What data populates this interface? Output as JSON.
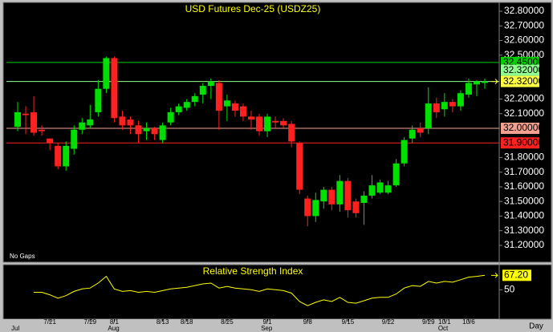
{
  "chart_data": {
    "type": "candlestick",
    "title": "USD Futures Dec-25 (USDZ25)",
    "annotation": "No Gaps",
    "period": "Day",
    "up_color": "#00e000",
    "down_color": "#ff2020",
    "categories": [
      null,
      null,
      null,
      null,
      "7/21",
      null,
      null,
      null,
      null,
      "7/29",
      null,
      null,
      "8/1",
      null,
      null,
      null,
      null,
      null,
      "8/13",
      null,
      null,
      "8/18",
      null,
      null,
      null,
      null,
      "8/25",
      null,
      null,
      null,
      null,
      "9/1",
      null,
      null,
      null,
      null,
      "9/8",
      null,
      null,
      null,
      null,
      "9/15",
      null,
      null,
      null,
      null,
      "9/22",
      null,
      null,
      null,
      null,
      "9/29",
      null,
      "10/1",
      null,
      null,
      "10/6",
      null,
      null
    ],
    "months": [
      "Jul",
      null,
      null,
      null,
      null,
      null,
      null,
      null,
      null,
      null,
      null,
      null,
      "Aug",
      null,
      null,
      null,
      null,
      null,
      null,
      null,
      null,
      null,
      null,
      null,
      null,
      null,
      null,
      null,
      null,
      null,
      null,
      "Sep",
      null,
      null,
      null,
      null,
      null,
      null,
      null,
      null,
      null,
      null,
      null,
      null,
      null,
      null,
      null,
      null,
      null,
      null,
      null,
      null,
      null,
      "Oct",
      null,
      null,
      null,
      null,
      null
    ],
    "open": [
      32.01,
      32.1,
      32.11,
      31.99,
      31.93,
      31.88,
      31.74,
      31.86,
      31.99,
      32.02,
      32.11,
      32.27,
      32.48,
      32.08,
      32.06,
      32.02,
      31.98,
      32.0,
      31.92,
      32.04,
      32.11,
      32.14,
      32.18,
      32.23,
      32.29,
      32.31,
      32.15,
      32.17,
      32.15,
      32.08,
      32.08,
      31.98,
      32.05,
      32.05,
      32.03,
      31.9,
      31.52,
      31.4,
      31.5,
      31.58,
      31.48,
      31.64,
      31.5,
      31.49,
      31.54,
      31.56,
      31.56,
      31.61,
      31.76,
      31.93,
      32.0,
      32.0,
      32.17,
      32.13,
      32.18,
      32.15,
      32.23,
      32.3,
      32.31
    ],
    "high": [
      32.18,
      32.15,
      32.22,
      32.02,
      31.93,
      31.9,
      31.91,
      32.02,
      32.07,
      32.16,
      32.33,
      32.49,
      32.49,
      32.12,
      32.08,
      32.05,
      32.04,
      32.01,
      32.04,
      32.14,
      32.17,
      32.2,
      32.24,
      32.31,
      32.34,
      32.33,
      32.23,
      32.19,
      32.17,
      32.12,
      32.1,
      32.1,
      32.08,
      32.07,
      32.05,
      31.91,
      31.54,
      31.56,
      31.6,
      31.6,
      31.68,
      31.66,
      31.52,
      31.57,
      31.68,
      31.65,
      31.64,
      31.79,
      31.94,
      32.02,
      32.04,
      32.28,
      32.21,
      32.24,
      32.2,
      32.26,
      32.34,
      32.33,
      32.34
    ],
    "low": [
      31.98,
      31.96,
      31.95,
      31.95,
      31.85,
      31.72,
      31.71,
      31.82,
      31.96,
      32.0,
      32.08,
      32.24,
      32.04,
      31.99,
      31.96,
      31.9,
      31.92,
      31.92,
      31.9,
      32.02,
      32.09,
      32.12,
      32.15,
      32.17,
      32.2,
      31.99,
      32.05,
      32.08,
      32.05,
      31.99,
      31.95,
      31.94,
      32.0,
      32.0,
      31.87,
      31.55,
      31.33,
      31.36,
      31.45,
      31.44,
      31.43,
      31.39,
      31.39,
      31.34,
      31.52,
      31.55,
      31.55,
      31.6,
      31.74,
      31.9,
      31.94,
      31.96,
      32.07,
      32.08,
      32.11,
      32.12,
      32.21,
      32.22,
      32.27
    ],
    "close": [
      32.11,
      32.09,
      31.97,
      31.98,
      31.9,
      31.74,
      31.88,
      31.99,
      32.04,
      32.06,
      32.27,
      32.48,
      32.07,
      32.02,
      32.02,
      31.96,
      32.0,
      31.96,
      32.02,
      32.11,
      32.15,
      32.18,
      32.22,
      32.29,
      32.32,
      32.12,
      32.19,
      32.12,
      32.08,
      32.06,
      31.98,
      32.08,
      32.04,
      32.02,
      31.91,
      31.58,
      31.4,
      31.51,
      31.58,
      31.48,
      31.64,
      31.44,
      31.42,
      31.54,
      31.61,
      31.63,
      31.61,
      31.76,
      31.92,
      31.99,
      31.97,
      32.17,
      32.11,
      32.18,
      32.15,
      32.24,
      32.31,
      32.32,
      32.32
    ],
    "ylim": [
      31.09,
      32.855
    ],
    "yticks": [
      {
        "value": 32.8,
        "label": "32.80000"
      },
      {
        "value": 32.7,
        "label": "32.70000"
      },
      {
        "value": 32.6,
        "label": "32.60000"
      },
      {
        "value": 32.5,
        "label": "32.50000"
      },
      {
        "value": 32.2,
        "label": "32.20000"
      },
      {
        "value": 32.1,
        "label": "32.10000"
      },
      {
        "value": 31.8,
        "label": "31.80000"
      },
      {
        "value": 31.7,
        "label": "31.70000"
      },
      {
        "value": 31.6,
        "label": "31.60000"
      },
      {
        "value": 31.5,
        "label": "31.50000"
      },
      {
        "value": 31.4,
        "label": "31.40000"
      },
      {
        "value": 31.3,
        "label": "31.30000"
      },
      {
        "value": 31.2,
        "label": "31.20000"
      }
    ],
    "levels": [
      {
        "value": 32.45,
        "label": "32.45000",
        "color": "#00d000"
      },
      {
        "value": 32.32,
        "label": "32.32000",
        "color": "#90ff90"
      },
      {
        "value": 32.0,
        "label": "32.00000",
        "color": "#f4a090"
      },
      {
        "value": 31.9,
        "label": "31.90000",
        "color": "#ff2020"
      }
    ],
    "last_price": {
      "value": 32.32,
      "label": "32.32000",
      "color": "#ffff40"
    },
    "rsi": {
      "title": "Relative Strength Index",
      "color": "#ffff00",
      "values": [
        null,
        null,
        47,
        47,
        44,
        40,
        43,
        48,
        51,
        52,
        58,
        66,
        51,
        48,
        49,
        47,
        48,
        47,
        49,
        51,
        52,
        53,
        55,
        57,
        58,
        52,
        54,
        52,
        51,
        50,
        48,
        51,
        50,
        49,
        46,
        36,
        31,
        35,
        38,
        36,
        41,
        35,
        34,
        37,
        40,
        41,
        41,
        45,
        52,
        55,
        54,
        60,
        58,
        60,
        59,
        62,
        65,
        66,
        67.2
      ],
      "ylim": [
        15,
        78
      ],
      "yticks": [
        50
      ],
      "last": {
        "value": 67.2,
        "label": "67.20"
      }
    }
  }
}
